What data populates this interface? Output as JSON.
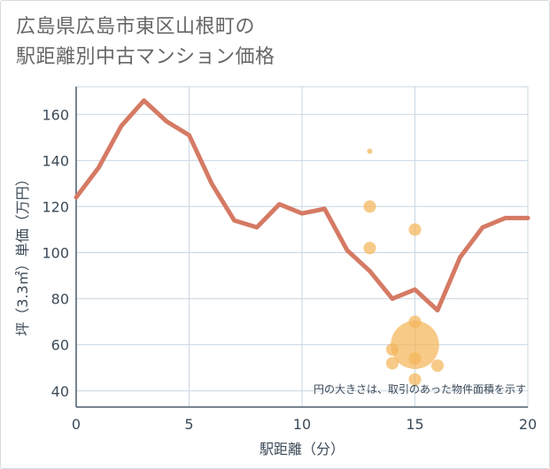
{
  "title_lines": [
    "広島県広島市東区山根町の",
    "駅距離別中古マンション価格"
  ],
  "colors": {
    "line": "#d57a64",
    "bubble": "#f4b55a",
    "grid": "#c9d7e3",
    "axis": "#4a5b6a"
  },
  "chart_data": {
    "type": "line+scatter",
    "xlabel": "駅距離（分）",
    "ylabel": "坪（3.3㎡）単価（万円）",
    "xlim": [
      0,
      20
    ],
    "ylim": [
      33,
      172
    ],
    "x_ticks": [
      0,
      5,
      10,
      15,
      20
    ],
    "y_ticks": [
      40,
      60,
      80,
      100,
      120,
      140,
      160
    ],
    "grid": true,
    "note": "円の大きさは、取引のあった物件面積を示す",
    "series": [
      {
        "type": "line",
        "x": [
          0,
          1,
          2,
          3,
          4,
          5,
          6,
          7,
          8,
          9,
          10,
          11,
          12,
          13,
          14,
          15,
          16,
          17,
          18,
          19,
          20
        ],
        "values": [
          124,
          137,
          155,
          166,
          157,
          151,
          130,
          114,
          111,
          121,
          117,
          119,
          101,
          92,
          80,
          84,
          75,
          98,
          111,
          115,
          115
        ]
      },
      {
        "type": "scatter",
        "points": [
          {
            "x": 13,
            "y": 144,
            "size": 1
          },
          {
            "x": 13,
            "y": 120,
            "size": 2.5
          },
          {
            "x": 13,
            "y": 102,
            "size": 2.5
          },
          {
            "x": 15,
            "y": 110,
            "size": 2.5
          },
          {
            "x": 15,
            "y": 70,
            "size": 2.5
          },
          {
            "x": 14,
            "y": 58,
            "size": 2.5
          },
          {
            "x": 14,
            "y": 52,
            "size": 2.5
          },
          {
            "x": 15,
            "y": 60,
            "size": 10
          },
          {
            "x": 15,
            "y": 54,
            "size": 2.5
          },
          {
            "x": 16,
            "y": 51,
            "size": 2.5
          },
          {
            "x": 15,
            "y": 45,
            "size": 2.5
          }
        ]
      }
    ]
  }
}
